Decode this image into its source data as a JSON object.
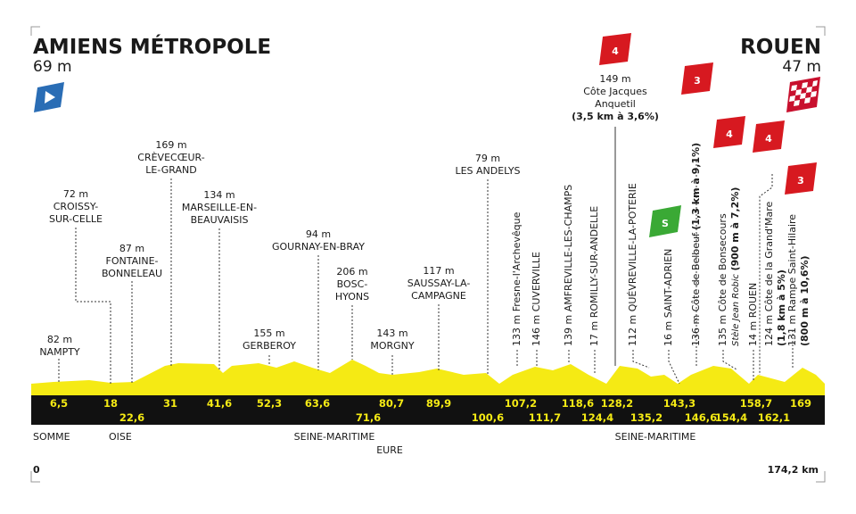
{
  "header": {
    "start": {
      "name": "AMIENS MÉTROPOLE",
      "altitude": "69 m"
    },
    "finish": {
      "name": "ROUEN",
      "altitude": "47 m"
    }
  },
  "climb_badges": [
    "4",
    "3",
    "4",
    "4",
    "3"
  ],
  "sprint_badge": "S",
  "top_climb": {
    "lines": [
      "149 m",
      "Côte Jacques",
      "Anquetil"
    ],
    "detail": "(3,5 km à 3,6%)"
  },
  "points": [
    {
      "lines": [
        "82 m",
        "NAMPTY"
      ]
    },
    {
      "lines": [
        "72 m",
        "CROISSY-",
        "SUR-CELLE"
      ]
    },
    {
      "lines": [
        "87 m",
        "FONTAINE-",
        "BONNELEAU"
      ]
    },
    {
      "lines": [
        "169 m",
        "CRÈVECŒUR-",
        "LE-GRAND"
      ]
    },
    {
      "lines": [
        "134 m",
        "MARSEILLE-EN-",
        "BEAUVAISIS"
      ]
    },
    {
      "lines": [
        "155 m",
        "GERBEROY"
      ]
    },
    {
      "lines": [
        "94 m",
        "GOURNAY-EN-BRAY"
      ]
    },
    {
      "lines": [
        "206 m",
        "BOSC-",
        "HYONS"
      ]
    },
    {
      "lines": [
        "143 m",
        "MORGNY"
      ]
    },
    {
      "lines": [
        "117 m",
        "SAUSSAY-LA-",
        "CAMPAGNE"
      ]
    },
    {
      "lines": [
        "79 m",
        "LES ANDELYS"
      ]
    }
  ],
  "vertical_points": [
    {
      "text": "133 m Fresne-l'Archevêque"
    },
    {
      "text": "146 m CUVERVILLE"
    },
    {
      "text": "139 m AMFREVILLE-LES-CHAMPS"
    },
    {
      "text": "17 m ROMILLY-SUR-ANDELLE"
    },
    {
      "text": "112 m QUÉVREVILLE-LA-POTERIE"
    },
    {
      "text": "16 m SAINT-ADRIEN"
    },
    {
      "text": "136 m Côte de Belbeuf",
      "detail": "(1,3 km à 9,1%)"
    },
    {
      "text": "135 m Côte de Bonsecours",
      "note": "Stèle Jean Robic",
      "detail": "(900 m à 7,2%)"
    },
    {
      "text": "14 m ROUEN"
    },
    {
      "text": "124 m Côte de la Grand'Mare",
      "detail": "(1,8 km à 5%)"
    },
    {
      "text": "131 m Rampe Saint-Hilaire",
      "detail": "(800 m à 10,6%)"
    }
  ],
  "km_upper": [
    "6,5",
    "18",
    "31",
    "41,6",
    "52,3",
    "63,6",
    "80,7",
    "89,9",
    "107,2",
    "118,6",
    "128,2",
    "143,3",
    "158,7",
    "169"
  ],
  "km_lower": [
    "22,6",
    "71,6",
    "100,6",
    "111,7",
    "124,4",
    "135,2",
    "146,6",
    "154,4",
    "162,1"
  ],
  "regions": [
    "SOMME",
    "OISE",
    "SEINE-MARITIME",
    "EURE",
    "SEINE-MARITIME"
  ],
  "distance": {
    "start": "0",
    "end": "174,2 km"
  }
}
